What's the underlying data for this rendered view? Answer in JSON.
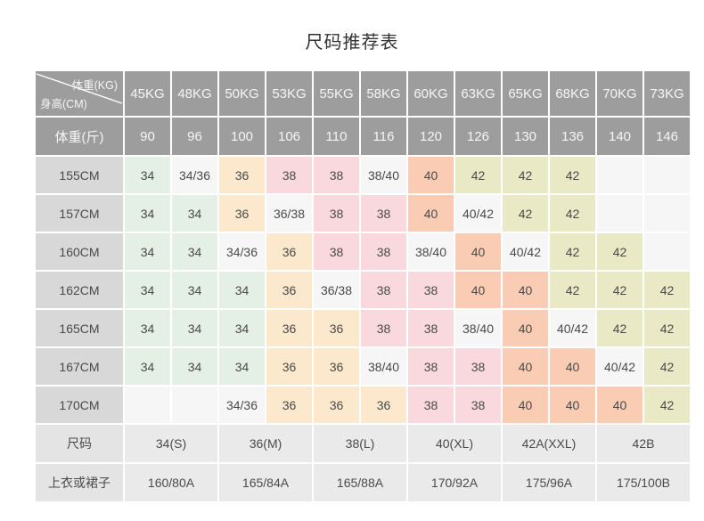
{
  "title": "尺码推荐表",
  "table": {
    "corner_top_right": "体重(KG)",
    "corner_bottom_left": "身高(CM)",
    "kg_headers": [
      "45KG",
      "48KG",
      "50KG",
      "53KG",
      "55KG",
      "58KG",
      "60KG",
      "63KG",
      "65KG",
      "68KG",
      "70KG",
      "73KG"
    ],
    "jin_label": "体重(斤)",
    "jin_values": [
      "90",
      "96",
      "100",
      "106",
      "110",
      "116",
      "120",
      "126",
      "130",
      "136",
      "140",
      "146"
    ],
    "height_rows": [
      {
        "label": "155CM",
        "cells": [
          "34",
          "34/36",
          "36",
          "38",
          "38",
          "38/40",
          "40",
          "42",
          "42",
          "42",
          "",
          ""
        ]
      },
      {
        "label": "157CM",
        "cells": [
          "34",
          "34",
          "36",
          "36/38",
          "38",
          "38",
          "40",
          "40/42",
          "42",
          "42",
          "",
          ""
        ]
      },
      {
        "label": "160CM",
        "cells": [
          "34",
          "34",
          "34/36",
          "36",
          "38",
          "38",
          "38/40",
          "40",
          "40/42",
          "42",
          "42",
          ""
        ]
      },
      {
        "label": "162CM",
        "cells": [
          "34",
          "34",
          "34",
          "36",
          "36/38",
          "38",
          "38",
          "40",
          "40",
          "42",
          "42",
          "42"
        ]
      },
      {
        "label": "165CM",
        "cells": [
          "34",
          "34",
          "34",
          "36",
          "36",
          "38",
          "38",
          "38/40",
          "40",
          "40/42",
          "42",
          "42"
        ]
      },
      {
        "label": "167CM",
        "cells": [
          "34",
          "34",
          "34",
          "36",
          "36",
          "38/40",
          "38",
          "38",
          "40",
          "40",
          "40/42",
          "42"
        ]
      },
      {
        "label": "170CM",
        "cells": [
          "",
          "",
          "34/36",
          "36",
          "36",
          "36",
          "38",
          "38",
          "40",
          "40",
          "40",
          "42"
        ]
      }
    ],
    "size_label": "尺码",
    "size_values": [
      "34(S)",
      "36(M)",
      "38(L)",
      "40(XL)",
      "42A(XXL)",
      "42B"
    ],
    "garment_label": "上衣或裙子",
    "garment_values": [
      "160/80A",
      "165/84A",
      "165/88A",
      "170/92A",
      "175/96A",
      "175/100B"
    ]
  },
  "colors": {
    "header_bg": "#9d9d9d",
    "header_text": "#f5f5f5",
    "height_label_bg": "#d8d8d8",
    "bottom_label_bg": "#e4e4e4",
    "bottom_value_bg": "#eaeaea",
    "cell_text": "#4a4a4a",
    "title_text": "#333333",
    "cell_colors": {
      "34": "#e4efe6",
      "36": "#fce8cd",
      "38": "#fad9de",
      "40": "#fbccb4",
      "42": "#e9e9c5",
      "default": "#f6f6f6"
    }
  }
}
